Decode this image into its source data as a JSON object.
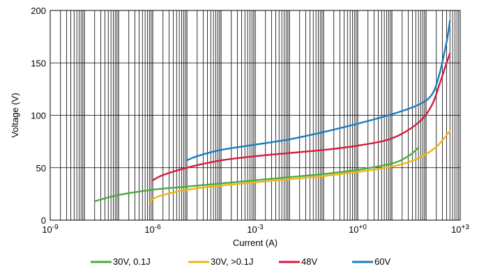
{
  "chart_data": {
    "type": "line",
    "xlabel": "Current (A)",
    "ylabel": "Voltage (V)",
    "x_scale": "log",
    "xlim": [
      1e-09,
      1000
    ],
    "ylim": [
      0,
      200
    ],
    "x_ticks": [
      {
        "base": "10",
        "exp": "-9",
        "value": 1e-09
      },
      {
        "base": "10",
        "exp": "-6",
        "value": 1e-06
      },
      {
        "base": "10",
        "exp": "-3",
        "value": 0.001
      },
      {
        "base": "10",
        "exp": "+0",
        "value": 1
      },
      {
        "base": "10",
        "exp": "+3",
        "value": 1000
      }
    ],
    "y_ticks": [
      "0",
      "50",
      "100",
      "150",
      "200"
    ],
    "grid": true,
    "legend_position": "bottom",
    "series": [
      {
        "name": "30V, 0.1J",
        "color": "#4aab3c",
        "x": [
          2e-08,
          1e-07,
          1e-06,
          1e-05,
          0.0001,
          0.001,
          0.01,
          0.1,
          1,
          10,
          30,
          60
        ],
        "y": [
          18,
          24,
          29,
          32,
          35,
          38,
          41,
          44,
          48,
          54,
          61,
          69
        ]
      },
      {
        "name": "30V, >0.1J",
        "color": "#f2b317",
        "x": [
          8e-07,
          1e-06,
          2e-06,
          1e-05,
          0.0001,
          0.001,
          0.01,
          0.1,
          1,
          10,
          60,
          200,
          500
        ],
        "y": [
          16,
          20,
          24,
          29,
          33,
          36,
          39,
          42,
          46,
          51,
          59,
          70,
          85
        ]
      },
      {
        "name": "48V",
        "color": "#d7193f",
        "x": [
          1e-06,
          2e-06,
          1e-05,
          0.0001,
          0.001,
          0.01,
          0.1,
          1,
          10,
          60,
          150,
          250,
          400,
          500
        ],
        "y": [
          38,
          43,
          50,
          57,
          61,
          64,
          67,
          71,
          78,
          93,
          110,
          130,
          150,
          159
        ]
      },
      {
        "name": "60V",
        "color": "#1a7cc1",
        "x": [
          1e-05,
          2e-05,
          0.0001,
          0.001,
          0.01,
          0.1,
          1,
          10,
          60,
          150,
          250,
          400,
          500
        ],
        "y": [
          57,
          61,
          67,
          72,
          77,
          84,
          92,
          101,
          110,
          120,
          140,
          170,
          190
        ]
      }
    ]
  }
}
